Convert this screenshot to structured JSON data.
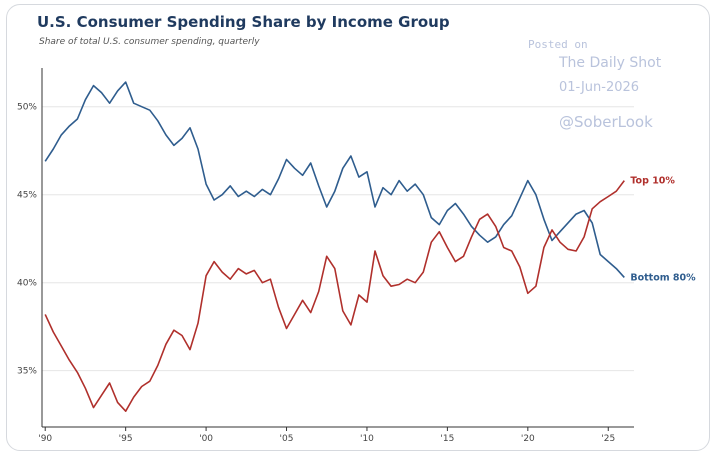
{
  "title": "U.S. Consumer Spending Share by Income Group",
  "subtitle": "Share of total U.S. consumer spending, quarterly",
  "watermark": {
    "posted_on": "Posted on",
    "source": "The Daily Shot",
    "date": "01-Jun-2026",
    "handle": "@SoberLook"
  },
  "chart_data": {
    "type": "line",
    "xlim": [
      1989.8,
      2026.6
    ],
    "ylim": [
      31.8,
      52.2
    ],
    "x_ticks": [
      1990,
      1995,
      2000,
      2005,
      2010,
      2015,
      2020,
      2025
    ],
    "x_tick_labels": [
      "'90",
      "'95",
      "'00",
      "'05",
      "'10",
      "'15",
      "'20",
      "'25"
    ],
    "y_ticks": [
      35,
      40,
      45,
      50
    ],
    "y_tick_labels": [
      "35%",
      "40%",
      "45%",
      "50%"
    ],
    "grid": "horizontal",
    "legend": "line-end labels",
    "series": [
      {
        "name": "Bottom 80%",
        "color": "#2f5d8e",
        "points": [
          [
            1990,
            46.9
          ],
          [
            1990.5,
            47.6
          ],
          [
            1991,
            48.4
          ],
          [
            1991.5,
            48.9
          ],
          [
            1992,
            49.3
          ],
          [
            1992.5,
            50.4
          ],
          [
            1993,
            51.2
          ],
          [
            1993.5,
            50.8
          ],
          [
            1994,
            50.2
          ],
          [
            1994.5,
            50.9
          ],
          [
            1995,
            51.4
          ],
          [
            1995.5,
            50.2
          ],
          [
            1996,
            50.0
          ],
          [
            1996.5,
            49.8
          ],
          [
            1997,
            49.2
          ],
          [
            1997.5,
            48.4
          ],
          [
            1998,
            47.8
          ],
          [
            1998.5,
            48.2
          ],
          [
            1999,
            48.8
          ],
          [
            1999.5,
            47.6
          ],
          [
            2000,
            45.6
          ],
          [
            2000.5,
            44.7
          ],
          [
            2001,
            45.0
          ],
          [
            2001.5,
            45.5
          ],
          [
            2002,
            44.9
          ],
          [
            2002.5,
            45.2
          ],
          [
            2003,
            44.9
          ],
          [
            2003.5,
            45.3
          ],
          [
            2004,
            45.0
          ],
          [
            2004.5,
            45.9
          ],
          [
            2005,
            47.0
          ],
          [
            2005.5,
            46.5
          ],
          [
            2006,
            46.1
          ],
          [
            2006.5,
            46.8
          ],
          [
            2007,
            45.5
          ],
          [
            2007.5,
            44.3
          ],
          [
            2008,
            45.2
          ],
          [
            2008.5,
            46.5
          ],
          [
            2009,
            47.2
          ],
          [
            2009.5,
            46.0
          ],
          [
            2010,
            46.3
          ],
          [
            2010.5,
            44.3
          ],
          [
            2011,
            45.4
          ],
          [
            2011.5,
            45.0
          ],
          [
            2012,
            45.8
          ],
          [
            2012.5,
            45.2
          ],
          [
            2013,
            45.6
          ],
          [
            2013.5,
            45.0
          ],
          [
            2014,
            43.7
          ],
          [
            2014.5,
            43.3
          ],
          [
            2015,
            44.1
          ],
          [
            2015.5,
            44.5
          ],
          [
            2016,
            43.9
          ],
          [
            2016.5,
            43.2
          ],
          [
            2017,
            42.7
          ],
          [
            2017.5,
            42.3
          ],
          [
            2018,
            42.6
          ],
          [
            2018.5,
            43.3
          ],
          [
            2019,
            43.8
          ],
          [
            2019.5,
            44.8
          ],
          [
            2020,
            45.8
          ],
          [
            2020.5,
            45.0
          ],
          [
            2021,
            43.6
          ],
          [
            2021.5,
            42.4
          ],
          [
            2022,
            42.9
          ],
          [
            2022.5,
            43.4
          ],
          [
            2023,
            43.9
          ],
          [
            2023.5,
            44.1
          ],
          [
            2024,
            43.4
          ],
          [
            2024.5,
            41.6
          ],
          [
            2025,
            41.2
          ],
          [
            2025.5,
            40.8
          ],
          [
            2026,
            40.3
          ]
        ]
      },
      {
        "name": "Top 10%",
        "color": "#b0302c",
        "points": [
          [
            1990,
            38.2
          ],
          [
            1990.5,
            37.2
          ],
          [
            1991,
            36.4
          ],
          [
            1991.5,
            35.6
          ],
          [
            1992,
            34.9
          ],
          [
            1992.5,
            34.0
          ],
          [
            1993,
            32.9
          ],
          [
            1993.5,
            33.6
          ],
          [
            1994,
            34.3
          ],
          [
            1994.5,
            33.2
          ],
          [
            1995,
            32.7
          ],
          [
            1995.5,
            33.5
          ],
          [
            1996,
            34.1
          ],
          [
            1996.5,
            34.4
          ],
          [
            1997,
            35.3
          ],
          [
            1997.5,
            36.5
          ],
          [
            1998,
            37.3
          ],
          [
            1998.5,
            37.0
          ],
          [
            1999,
            36.2
          ],
          [
            1999.5,
            37.7
          ],
          [
            2000,
            40.4
          ],
          [
            2000.5,
            41.2
          ],
          [
            2001,
            40.6
          ],
          [
            2001.5,
            40.2
          ],
          [
            2002,
            40.8
          ],
          [
            2002.5,
            40.5
          ],
          [
            2003,
            40.7
          ],
          [
            2003.5,
            40.0
          ],
          [
            2004,
            40.2
          ],
          [
            2004.5,
            38.6
          ],
          [
            2005,
            37.4
          ],
          [
            2005.5,
            38.2
          ],
          [
            2006,
            39.0
          ],
          [
            2006.5,
            38.3
          ],
          [
            2007,
            39.5
          ],
          [
            2007.5,
            41.5
          ],
          [
            2008,
            40.8
          ],
          [
            2008.5,
            38.4
          ],
          [
            2009,
            37.6
          ],
          [
            2009.5,
            39.3
          ],
          [
            2010,
            38.9
          ],
          [
            2010.5,
            41.8
          ],
          [
            2011,
            40.4
          ],
          [
            2011.5,
            39.8
          ],
          [
            2012,
            39.9
          ],
          [
            2012.5,
            40.2
          ],
          [
            2013,
            40.0
          ],
          [
            2013.5,
            40.6
          ],
          [
            2014,
            42.3
          ],
          [
            2014.5,
            42.9
          ],
          [
            2015,
            42.0
          ],
          [
            2015.5,
            41.2
          ],
          [
            2016,
            41.5
          ],
          [
            2016.5,
            42.6
          ],
          [
            2017,
            43.6
          ],
          [
            2017.5,
            43.9
          ],
          [
            2018,
            43.2
          ],
          [
            2018.5,
            42.0
          ],
          [
            2019,
            41.8
          ],
          [
            2019.5,
            40.9
          ],
          [
            2020,
            39.4
          ],
          [
            2020.5,
            39.8
          ],
          [
            2021,
            42.0
          ],
          [
            2021.5,
            43.0
          ],
          [
            2022,
            42.3
          ],
          [
            2022.5,
            41.9
          ],
          [
            2023,
            41.8
          ],
          [
            2023.5,
            42.6
          ],
          [
            2024,
            44.2
          ],
          [
            2024.5,
            44.6
          ],
          [
            2025,
            44.9
          ],
          [
            2025.5,
            45.2
          ],
          [
            2026,
            45.8
          ]
        ]
      }
    ]
  }
}
